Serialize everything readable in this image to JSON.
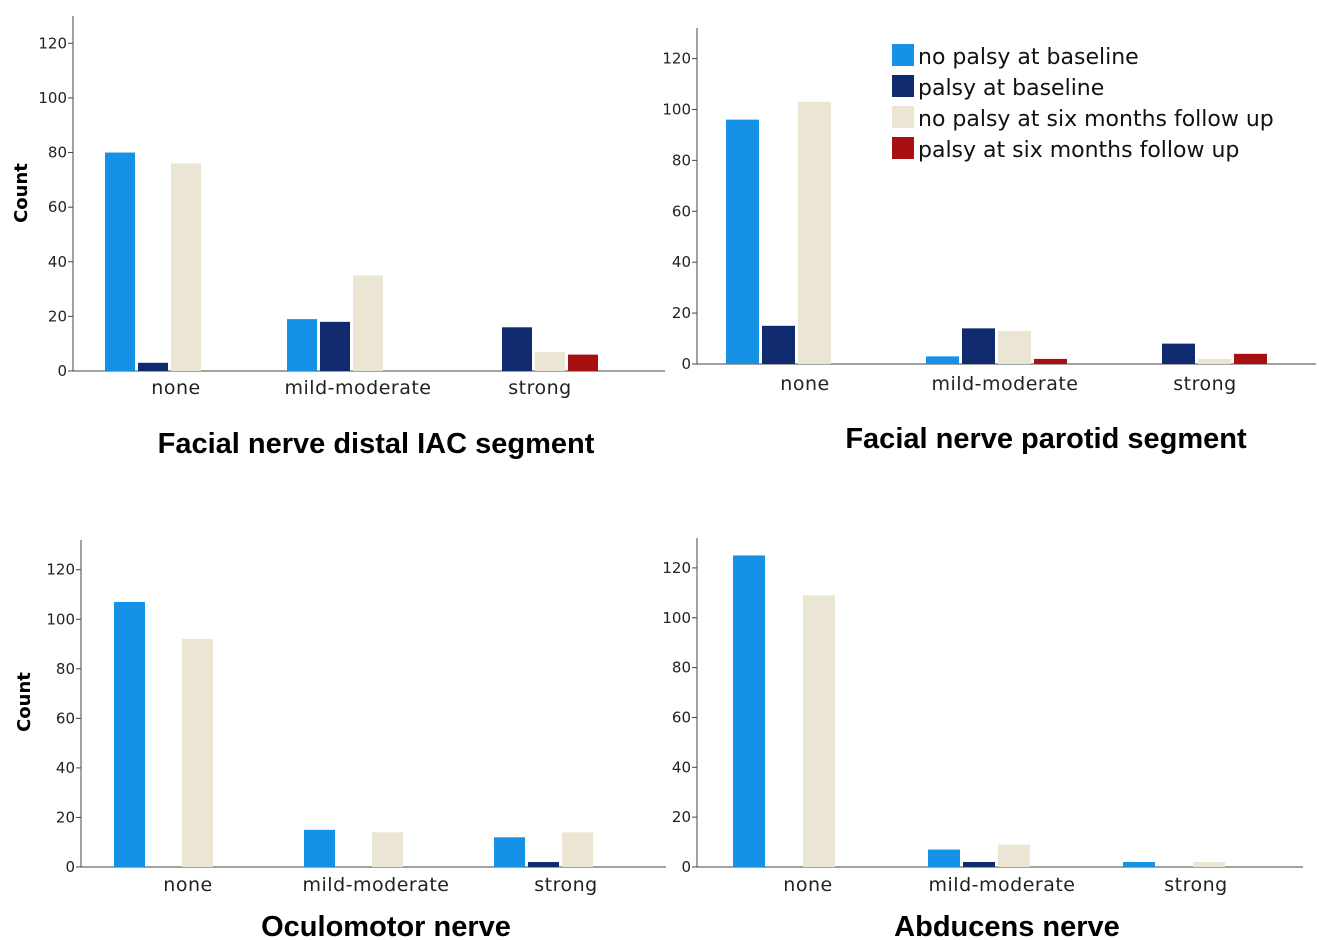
{
  "legend": [
    {
      "label": "no palsy at baseline",
      "color": "#1592e6"
    },
    {
      "label": "palsy at baseline",
      "color": "#0f2a6e"
    },
    {
      "label": "no palsy at six months follow up",
      "color": "#ebe5d3"
    },
    {
      "label": "palsy at six months follow up",
      "color": "#a80f10"
    }
  ],
  "chart_data": [
    {
      "type": "bar",
      "title": "Facial nerve distal IAC segment",
      "ylabel": "Count",
      "categories": [
        "none",
        "mild-moderate",
        "strong"
      ],
      "ylim": [
        0,
        130
      ],
      "yticks": [
        0,
        20,
        40,
        60,
        80,
        100,
        120
      ],
      "series": [
        {
          "name": "no palsy at baseline",
          "values": [
            80,
            19,
            0
          ]
        },
        {
          "name": "palsy at baseline",
          "values": [
            3,
            18,
            16
          ]
        },
        {
          "name": "no palsy at six months follow up",
          "values": [
            76,
            35,
            7
          ]
        },
        {
          "name": "palsy at six months follow up",
          "values": [
            0,
            0,
            6
          ]
        }
      ]
    },
    {
      "type": "bar",
      "title": "Facial nerve parotid segment",
      "ylabel": "",
      "categories": [
        "none",
        "mild-moderate",
        "strong"
      ],
      "ylim": [
        0,
        132
      ],
      "yticks": [
        0,
        20,
        40,
        60,
        80,
        100,
        120
      ],
      "legend_position": "top-right",
      "series": [
        {
          "name": "no palsy at baseline",
          "values": [
            96,
            3,
            0
          ]
        },
        {
          "name": "palsy at baseline",
          "values": [
            15,
            14,
            8
          ]
        },
        {
          "name": "no palsy at six months follow up",
          "values": [
            103,
            13,
            2
          ]
        },
        {
          "name": "palsy at six months follow up",
          "values": [
            0,
            2,
            4
          ]
        }
      ]
    },
    {
      "type": "bar",
      "title": "Oculomotor nerve",
      "ylabel": "Count",
      "categories": [
        "none",
        "mild-moderate",
        "strong"
      ],
      "ylim": [
        0,
        132
      ],
      "yticks": [
        0,
        20,
        40,
        60,
        80,
        100,
        120
      ],
      "series": [
        {
          "name": "no palsy at baseline",
          "values": [
            107,
            15,
            12
          ]
        },
        {
          "name": "palsy at baseline",
          "values": [
            0,
            0,
            2
          ]
        },
        {
          "name": "no palsy at six months follow up",
          "values": [
            92,
            14,
            14
          ]
        },
        {
          "name": "palsy at six months follow up",
          "values": [
            0,
            0,
            0
          ]
        }
      ]
    },
    {
      "type": "bar",
      "title": "Abducens nerve",
      "ylabel": "",
      "categories": [
        "none",
        "mild-moderate",
        "strong"
      ],
      "ylim": [
        0,
        132
      ],
      "yticks": [
        0,
        20,
        40,
        60,
        80,
        100,
        120
      ],
      "series": [
        {
          "name": "no palsy at baseline",
          "values": [
            125,
            7,
            2
          ]
        },
        {
          "name": "palsy at baseline",
          "values": [
            0,
            2,
            0
          ]
        },
        {
          "name": "no palsy at six months follow up",
          "values": [
            109,
            9,
            2
          ]
        },
        {
          "name": "palsy at six months follow up",
          "values": [
            0,
            0,
            0
          ]
        }
      ]
    }
  ]
}
